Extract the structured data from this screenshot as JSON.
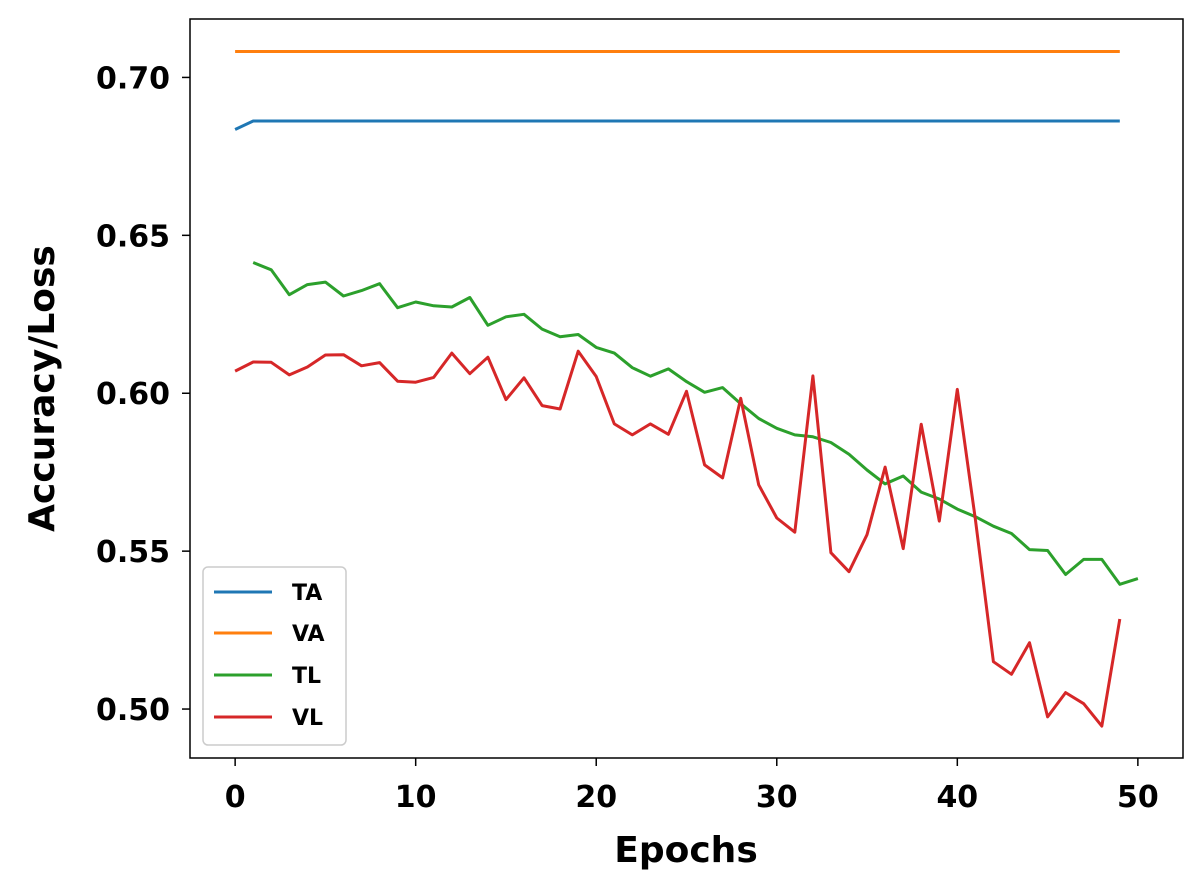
{
  "chart_data": {
    "type": "line",
    "xlabel": "Epochs",
    "ylabel": "Accuracy/Loss",
    "xlim": [
      -2.5,
      52.5
    ],
    "ylim": [
      0.4845,
      0.7185
    ],
    "x_ticks": [
      0,
      10,
      20,
      30,
      40,
      50
    ],
    "y_ticks": [
      0.5,
      0.55,
      0.6,
      0.65,
      0.7
    ],
    "x_tick_labels": [
      "0",
      "10",
      "20",
      "30",
      "40",
      "50"
    ],
    "y_tick_labels": [
      "0.50",
      "0.55",
      "0.60",
      "0.65",
      "0.70"
    ],
    "grid": false,
    "legend_position": "lower-left",
    "series": [
      {
        "name": "TA",
        "color": "#1f77b4",
        "x": [
          0,
          1,
          2,
          3,
          4,
          5,
          6,
          7,
          8,
          9,
          10,
          11,
          12,
          13,
          14,
          15,
          16,
          17,
          18,
          19,
          20,
          21,
          22,
          23,
          24,
          25,
          26,
          27,
          28,
          29,
          30,
          31,
          32,
          33,
          34,
          35,
          36,
          37,
          38,
          39,
          40,
          41,
          42,
          43,
          44,
          45,
          46,
          47,
          48,
          49
        ],
        "values": [
          0.6835,
          0.6862,
          0.6862,
          0.6862,
          0.6862,
          0.6862,
          0.6862,
          0.6862,
          0.6862,
          0.6862,
          0.6862,
          0.6862,
          0.6862,
          0.6862,
          0.6862,
          0.6862,
          0.6862,
          0.6862,
          0.6862,
          0.6862,
          0.6862,
          0.6862,
          0.6862,
          0.6862,
          0.6862,
          0.6862,
          0.6862,
          0.6862,
          0.6862,
          0.6862,
          0.6862,
          0.6862,
          0.6862,
          0.6862,
          0.6862,
          0.6862,
          0.6862,
          0.6862,
          0.6862,
          0.6862,
          0.6862,
          0.6862,
          0.6862,
          0.6862,
          0.6862,
          0.6862,
          0.6862,
          0.6862,
          0.6862,
          0.6862
        ]
      },
      {
        "name": "VA",
        "color": "#ff7f0e",
        "x": [
          0,
          1,
          2,
          3,
          4,
          5,
          6,
          7,
          8,
          9,
          10,
          11,
          12,
          13,
          14,
          15,
          16,
          17,
          18,
          19,
          20,
          21,
          22,
          23,
          24,
          25,
          26,
          27,
          28,
          29,
          30,
          31,
          32,
          33,
          34,
          35,
          36,
          37,
          38,
          39,
          40,
          41,
          42,
          43,
          44,
          45,
          46,
          47,
          48,
          49
        ],
        "values": [
          0.7082,
          0.7082,
          0.7082,
          0.7082,
          0.7082,
          0.7082,
          0.7082,
          0.7082,
          0.7082,
          0.7082,
          0.7082,
          0.7082,
          0.7082,
          0.7082,
          0.7082,
          0.7082,
          0.7082,
          0.7082,
          0.7082,
          0.7082,
          0.7082,
          0.7082,
          0.7082,
          0.7082,
          0.7082,
          0.7082,
          0.7082,
          0.7082,
          0.7082,
          0.7082,
          0.7082,
          0.7082,
          0.7082,
          0.7082,
          0.7082,
          0.7082,
          0.7082,
          0.7082,
          0.7082,
          0.7082,
          0.7082,
          0.7082,
          0.7082,
          0.7082,
          0.7082,
          0.7082,
          0.7082,
          0.7082,
          0.7082,
          0.7082
        ]
      },
      {
        "name": "TL",
        "color": "#2ca02c",
        "x": [
          1,
          2,
          3,
          4,
          5,
          6,
          7,
          8,
          9,
          10,
          11,
          12,
          13,
          14,
          15,
          16,
          17,
          18,
          19,
          20,
          21,
          22,
          23,
          24,
          25,
          26,
          27,
          28,
          29,
          30,
          31,
          32,
          33,
          34,
          35,
          36,
          37,
          38,
          39,
          40,
          41,
          42,
          43,
          44,
          45,
          46,
          47,
          48,
          49,
          50
        ],
        "values": [
          0.6414,
          0.6391,
          0.6312,
          0.6344,
          0.6352,
          0.6308,
          0.6325,
          0.6347,
          0.6271,
          0.6289,
          0.6277,
          0.6273,
          0.6303,
          0.6215,
          0.6242,
          0.625,
          0.6203,
          0.6179,
          0.6186,
          0.6145,
          0.6127,
          0.6081,
          0.6054,
          0.6077,
          0.6037,
          0.6003,
          0.6018,
          0.5967,
          0.592,
          0.5889,
          0.5868,
          0.5862,
          0.5844,
          0.5807,
          0.5757,
          0.5713,
          0.5738,
          0.5687,
          0.5665,
          0.5633,
          0.5609,
          0.5579,
          0.5556,
          0.5505,
          0.5502,
          0.5426,
          0.5474,
          0.5474,
          0.5395,
          0.5413
        ]
      },
      {
        "name": "VL",
        "color": "#d62728",
        "x": [
          0,
          1,
          2,
          3,
          4,
          5,
          6,
          7,
          8,
          9,
          10,
          11,
          12,
          13,
          14,
          15,
          16,
          17,
          18,
          19,
          20,
          21,
          22,
          23,
          24,
          25,
          26,
          27,
          28,
          29,
          30,
          31,
          32,
          33,
          34,
          35,
          36,
          37,
          38,
          39,
          40,
          41,
          42,
          43,
          44,
          45,
          46,
          47,
          48,
          49
        ],
        "values": [
          0.607,
          0.6099,
          0.6098,
          0.6058,
          0.6083,
          0.6121,
          0.6122,
          0.6087,
          0.6097,
          0.6038,
          0.6035,
          0.605,
          0.6127,
          0.6062,
          0.6114,
          0.598,
          0.6049,
          0.5961,
          0.595,
          0.6133,
          0.6053,
          0.5903,
          0.5868,
          0.5903,
          0.587,
          0.6006,
          0.5773,
          0.5732,
          0.5984,
          0.571,
          0.5605,
          0.556,
          0.6055,
          0.5495,
          0.5435,
          0.5552,
          0.5766,
          0.5508,
          0.5902,
          0.5595,
          0.6012,
          0.56,
          0.515,
          0.511,
          0.521,
          0.4975,
          0.5052,
          0.5017,
          0.4946,
          0.5285
        ]
      }
    ]
  }
}
